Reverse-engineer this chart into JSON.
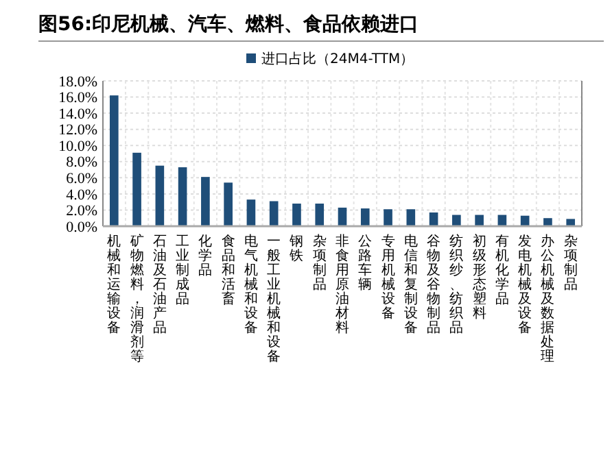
{
  "chart_data": {
    "type": "bar",
    "title": "图56:印尼机械、汽车、燃料、食品依赖进口",
    "categories": [
      "机械和运输设备",
      "矿物燃料，润滑剂等",
      "石油及石油产品",
      "工业制成品",
      "化学品",
      "食品和活畜",
      "电气机械和设备",
      "一般工业机械和设备",
      "钢铁",
      "杂项制品",
      "非食用原油材料",
      "公路车辆",
      "专用机械设备",
      "电信和复制设备",
      "谷物及谷物制品",
      "纺织纱、纺织品",
      "初级形态塑料",
      "有机化学品",
      "发电机械及设备",
      "办公机械及数据处理",
      "杂项制品"
    ],
    "series": [
      {
        "name": "进口占比（24M4-TTM）",
        "color": "#1f4e79",
        "values": [
          16.2,
          9.1,
          7.5,
          7.3,
          6.1,
          5.4,
          3.3,
          3.1,
          2.8,
          2.8,
          2.3,
          2.2,
          2.1,
          2.1,
          1.7,
          1.4,
          1.4,
          1.4,
          1.3,
          1.0,
          0.9
        ]
      }
    ],
    "ylim": [
      0,
      18
    ],
    "yticks": [
      {
        "value": 0,
        "label": "0.0%"
      },
      {
        "value": 2,
        "label": "2.0%"
      },
      {
        "value": 4,
        "label": "4.0%"
      },
      {
        "value": 6,
        "label": "6.0%"
      },
      {
        "value": 8,
        "label": "8.0%"
      },
      {
        "value": 10,
        "label": "10.0%"
      },
      {
        "value": 12,
        "label": "12.0%"
      },
      {
        "value": 14,
        "label": "14.0%"
      },
      {
        "value": 16,
        "label": "16.0%"
      },
      {
        "value": 18,
        "label": "18.0%"
      }
    ],
    "grid": true,
    "legend": "top"
  }
}
